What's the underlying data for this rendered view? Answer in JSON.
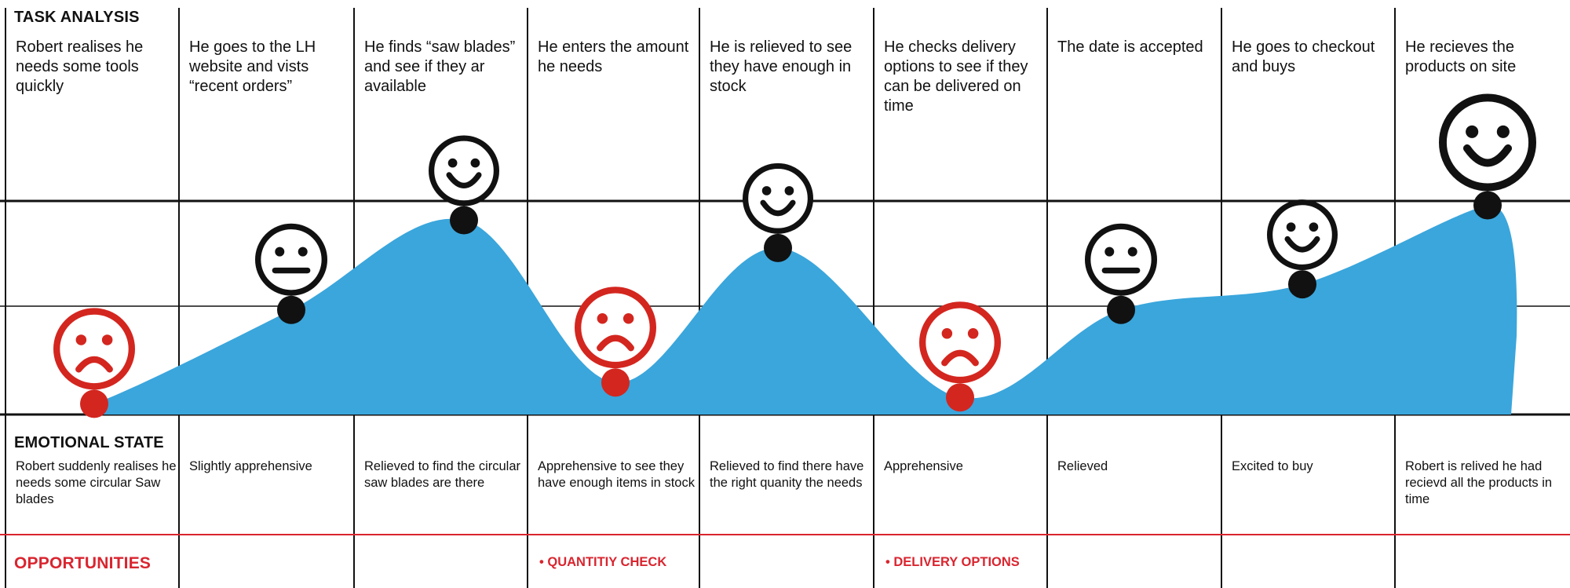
{
  "labels": {
    "task_analysis": "TASK ANALYSIS",
    "emotional_state": "EMOTIONAL STATE",
    "opportunities": "OPPORTUNITIES"
  },
  "colors": {
    "curve_fill": "#3aa6dc",
    "negative": "#d3261f",
    "neutral": "#111111",
    "opportunity": "#d9252f"
  },
  "steps": [
    {
      "task": "Robert realises he needs some tools quickly",
      "state": "Robert suddenly realises he needs some circular Saw blades",
      "mood": "sad",
      "level": 0.05,
      "opportunity": ""
    },
    {
      "task": "He goes to the LH website and vists “recent orders”",
      "state": "Slightly apprehensive",
      "mood": "neutral",
      "level": 0.49,
      "opportunity": ""
    },
    {
      "task": "He finds “saw blades” and see if they ar available",
      "state": "Relieved to find the circular saw blades are there",
      "mood": "happy",
      "level": 0.91,
      "opportunity": ""
    },
    {
      "task": "He enters the amount he needs",
      "state": "Apprehensive to see they have enough items in stock",
      "mood": "sad",
      "level": 0.15,
      "opportunity": "• QUANTITIY CHECK"
    },
    {
      "task": "He is relieved to see they have enough in stock",
      "state": "Relieved to find there have the right quanity the needs",
      "mood": "happy",
      "level": 0.78,
      "opportunity": ""
    },
    {
      "task": "He checks delivery options to see if they can be delivered on time",
      "state": "Apprehensive",
      "mood": "sad",
      "level": 0.08,
      "opportunity": "• DELIVERY OPTIONS"
    },
    {
      "task": "The date is accepted",
      "state": "Relieved",
      "mood": "neutral",
      "level": 0.49,
      "opportunity": ""
    },
    {
      "task": "He goes to checkout and buys",
      "state": "Excited to buy",
      "mood": "happy",
      "level": 0.61,
      "opportunity": ""
    },
    {
      "task": "He recieves the products on site",
      "state": "Robert is relived he had recievd all the products in time",
      "mood": "happy",
      "level": 0.98,
      "opportunity": ""
    }
  ]
}
